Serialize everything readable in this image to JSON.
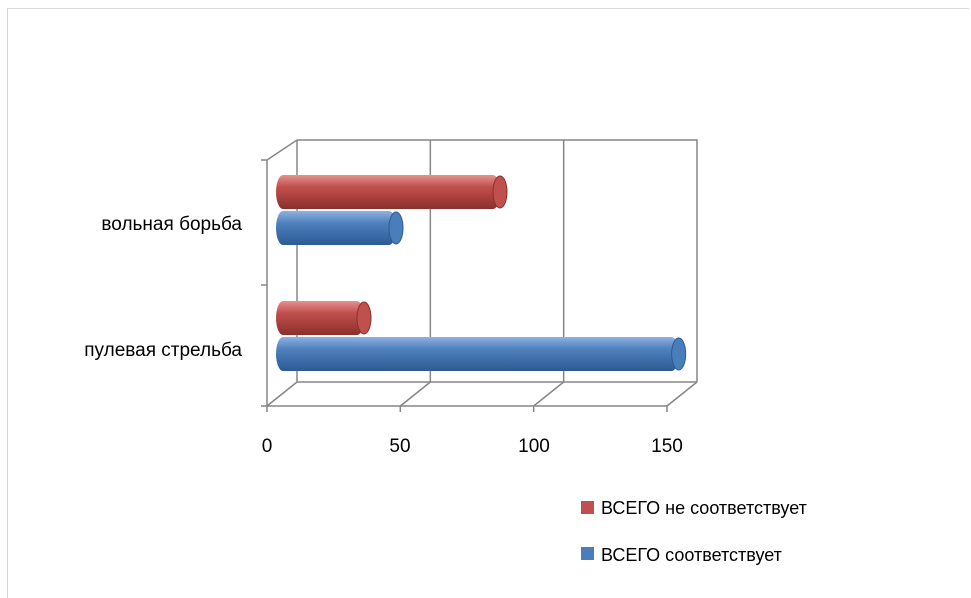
{
  "chart_data": {
    "type": "bar",
    "orientation": "horizontal",
    "style": "3d-cylinder",
    "categories": [
      "пулевая стрельба",
      "вольная борьба"
    ],
    "series": [
      {
        "name": "ВСЕГО соответствует",
        "values": [
          151,
          45
        ],
        "color": "#4a7ebb"
      },
      {
        "name": "ВСЕГО не соответствует",
        "values": [
          33,
          84
        ],
        "color": "#c0504d"
      }
    ],
    "xlim": [
      0,
      150
    ],
    "xticks": [
      "0",
      "50",
      "100",
      "150"
    ],
    "grid": true,
    "legend_position": "bottom-right"
  }
}
